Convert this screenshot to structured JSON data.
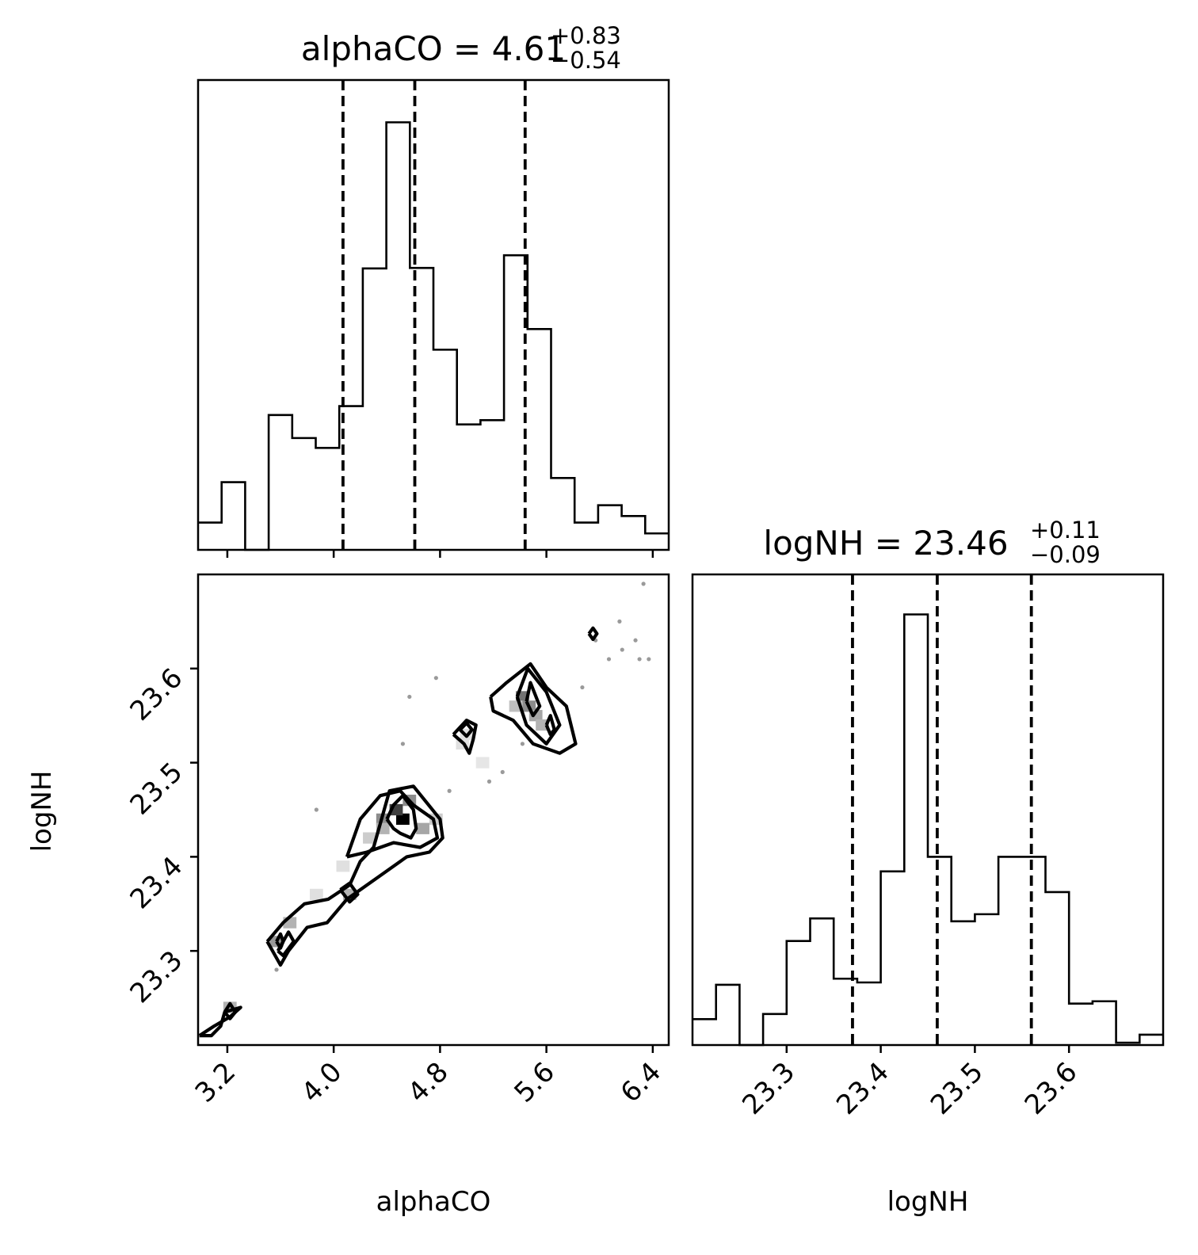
{
  "chart_data": {
    "type": "corner",
    "parameters": [
      "alphaCO",
      "logNH"
    ],
    "titles": [
      {
        "param": "alphaCO",
        "prefix": "alphaCO = ",
        "value": "4.61",
        "plus": "+0.83",
        "minus": "−0.54"
      },
      {
        "param": "logNH",
        "prefix": "logNH = ",
        "value": "23.46",
        "plus": "+0.11",
        "minus": "−0.09"
      }
    ],
    "xlabels": {
      "alphaCO": "alphaCO",
      "logNH": "logNH"
    },
    "ylabel": "logNH",
    "alphaCO_hist": {
      "range": [
        2.98,
        6.52
      ],
      "ylim": [
        0,
        1.0
      ],
      "bin_edges": [
        2.98,
        3.157,
        3.334,
        3.511,
        3.688,
        3.865,
        4.042,
        4.219,
        4.396,
        4.573,
        4.75,
        4.927,
        5.104,
        5.281,
        5.458,
        5.635,
        5.812,
        5.989,
        6.166,
        6.343,
        6.52
      ],
      "counts": [
        0.058,
        0.144,
        0.0,
        0.287,
        0.238,
        0.217,
        0.306,
        0.599,
        0.91,
        0.6,
        0.426,
        0.267,
        0.276,
        0.627,
        0.47,
        0.153,
        0.058,
        0.095,
        0.072,
        0.035
      ],
      "quantiles": [
        4.07,
        4.61,
        5.44
      ],
      "xticks": [
        "3.2",
        "4.0",
        "4.8",
        "5.6",
        "6.4"
      ]
    },
    "logNH_hist": {
      "range": [
        23.2,
        23.7
      ],
      "ylim": [
        0,
        1.0
      ],
      "bin_edges": [
        23.2,
        23.225,
        23.25,
        23.275,
        23.3,
        23.325,
        23.35,
        23.375,
        23.4,
        23.425,
        23.45,
        23.475,
        23.5,
        23.525,
        23.55,
        23.575,
        23.6,
        23.625,
        23.65,
        23.675,
        23.7
      ],
      "counts": [
        0.055,
        0.128,
        0.0,
        0.066,
        0.221,
        0.269,
        0.141,
        0.133,
        0.369,
        0.915,
        0.4,
        0.263,
        0.278,
        0.4,
        0.4,
        0.325,
        0.088,
        0.093,
        0.005,
        0.022
      ],
      "quantiles": [
        23.37,
        23.46,
        23.56
      ],
      "xticks": [
        "23.3",
        "23.4",
        "23.5",
        "23.6"
      ]
    },
    "joint": {
      "xlim": [
        2.98,
        6.52
      ],
      "ylim": [
        23.2,
        23.7
      ],
      "yticks": [
        "23.3",
        "23.4",
        "23.5",
        "23.6"
      ],
      "density_cells": [
        {
          "x": 4.52,
          "y": 23.44,
          "level": 1.0
        },
        {
          "x": 4.47,
          "y": 23.45,
          "level": 0.75
        },
        {
          "x": 4.37,
          "y": 23.44,
          "level": 0.45
        },
        {
          "x": 4.57,
          "y": 23.46,
          "level": 0.45
        },
        {
          "x": 4.67,
          "y": 23.43,
          "level": 0.35
        },
        {
          "x": 4.37,
          "y": 23.43,
          "level": 0.3
        },
        {
          "x": 4.77,
          "y": 23.44,
          "level": 0.2
        },
        {
          "x": 4.27,
          "y": 23.42,
          "level": 0.2
        },
        {
          "x": 5.42,
          "y": 23.57,
          "level": 0.55
        },
        {
          "x": 5.47,
          "y": 23.56,
          "level": 0.45
        },
        {
          "x": 5.52,
          "y": 23.55,
          "level": 0.35
        },
        {
          "x": 5.57,
          "y": 23.54,
          "level": 0.3
        },
        {
          "x": 5.37,
          "y": 23.56,
          "level": 0.25
        },
        {
          "x": 3.57,
          "y": 23.31,
          "level": 0.4
        },
        {
          "x": 3.67,
          "y": 23.33,
          "level": 0.3
        },
        {
          "x": 4.12,
          "y": 23.36,
          "level": 0.3
        },
        {
          "x": 3.22,
          "y": 23.24,
          "level": 0.3
        },
        {
          "x": 5.0,
          "y": 23.53,
          "level": 0.12
        },
        {
          "x": 4.97,
          "y": 23.52,
          "level": 0.12
        },
        {
          "x": 5.12,
          "y": 23.5,
          "level": 0.1
        },
        {
          "x": 3.87,
          "y": 23.36,
          "level": 0.12
        },
        {
          "x": 4.07,
          "y": 23.39,
          "level": 0.12
        }
      ],
      "scatter_points": [
        [
          5.97,
          23.63
        ],
        [
          6.07,
          23.61
        ],
        [
          6.17,
          23.62
        ],
        [
          6.27,
          23.63
        ],
        [
          6.3,
          23.61
        ],
        [
          6.37,
          23.61
        ],
        [
          6.15,
          23.65
        ],
        [
          6.33,
          23.69
        ],
        [
          4.57,
          23.57
        ],
        [
          4.77,
          23.59
        ],
        [
          4.52,
          23.52
        ],
        [
          3.87,
          23.45
        ],
        [
          3.57,
          23.28
        ],
        [
          5.87,
          23.58
        ],
        [
          5.17,
          23.48
        ],
        [
          5.27,
          23.49
        ],
        [
          4.87,
          23.47
        ],
        [
          5.42,
          23.52
        ]
      ],
      "contours": [
        [
          [
            2.99,
            23.21
          ],
          [
            3.1,
            23.22
          ],
          [
            3.22,
            23.23
          ],
          [
            3.3,
            23.24
          ],
          [
            3.18,
            23.235
          ],
          [
            3.15,
            23.22
          ],
          [
            3.08,
            23.21
          ],
          [
            2.99,
            23.21
          ]
        ],
        [
          [
            3.18,
            23.235
          ],
          [
            3.22,
            23.244
          ],
          [
            3.26,
            23.235
          ],
          [
            3.22,
            23.228
          ],
          [
            3.18,
            23.235
          ]
        ],
        [
          [
            3.5,
            23.31
          ],
          [
            3.62,
            23.33
          ],
          [
            3.78,
            23.35
          ],
          [
            3.96,
            23.355
          ],
          [
            4.12,
            23.37
          ],
          [
            4.2,
            23.395
          ],
          [
            4.3,
            23.41
          ],
          [
            4.42,
            23.47
          ],
          [
            4.6,
            23.475
          ],
          [
            4.8,
            23.44
          ],
          [
            4.82,
            23.42
          ],
          [
            4.72,
            23.405
          ],
          [
            4.55,
            23.4
          ],
          [
            4.35,
            23.38
          ],
          [
            4.1,
            23.355
          ],
          [
            3.95,
            23.33
          ],
          [
            3.8,
            23.325
          ],
          [
            3.66,
            23.3
          ],
          [
            3.6,
            23.285
          ],
          [
            3.5,
            23.31
          ]
        ],
        [
          [
            3.58,
            23.3
          ],
          [
            3.66,
            23.32
          ],
          [
            3.7,
            23.31
          ],
          [
            3.62,
            23.295
          ],
          [
            3.58,
            23.3
          ]
        ],
        [
          [
            3.57,
            23.31
          ],
          [
            3.6,
            23.318
          ],
          [
            3.62,
            23.31
          ],
          [
            3.6,
            23.303
          ],
          [
            3.57,
            23.31
          ]
        ],
        [
          [
            4.05,
            23.365
          ],
          [
            4.12,
            23.372
          ],
          [
            4.18,
            23.36
          ],
          [
            4.12,
            23.352
          ],
          [
            4.05,
            23.365
          ]
        ],
        [
          [
            4.1,
            23.4
          ],
          [
            4.2,
            23.44
          ],
          [
            4.35,
            23.465
          ],
          [
            4.5,
            23.47
          ],
          [
            4.6,
            23.455
          ],
          [
            4.75,
            23.44
          ],
          [
            4.78,
            23.42
          ],
          [
            4.65,
            23.41
          ],
          [
            4.45,
            23.415
          ],
          [
            4.25,
            23.405
          ],
          [
            4.1,
            23.4
          ]
        ],
        [
          [
            4.4,
            23.44
          ],
          [
            4.45,
            23.455
          ],
          [
            4.52,
            23.465
          ],
          [
            4.6,
            23.45
          ],
          [
            4.62,
            23.43
          ],
          [
            4.58,
            23.42
          ],
          [
            4.5,
            23.425
          ],
          [
            4.45,
            23.43
          ],
          [
            4.4,
            23.44
          ]
        ],
        [
          [
            4.9,
            23.53
          ],
          [
            5.0,
            23.545
          ],
          [
            5.07,
            23.54
          ],
          [
            5.05,
            23.525
          ],
          [
            5.02,
            23.51
          ],
          [
            4.98,
            23.52
          ],
          [
            4.9,
            23.53
          ]
        ],
        [
          [
            4.95,
            23.535
          ],
          [
            5.0,
            23.542
          ],
          [
            5.04,
            23.535
          ],
          [
            5.0,
            23.528
          ],
          [
            4.95,
            23.535
          ]
        ],
        [
          [
            5.18,
            23.57
          ],
          [
            5.3,
            23.585
          ],
          [
            5.48,
            23.605
          ],
          [
            5.6,
            23.58
          ],
          [
            5.75,
            23.56
          ],
          [
            5.82,
            23.52
          ],
          [
            5.7,
            23.51
          ],
          [
            5.5,
            23.52
          ],
          [
            5.35,
            23.545
          ],
          [
            5.2,
            23.555
          ],
          [
            5.18,
            23.57
          ]
        ],
        [
          [
            5.38,
            23.57
          ],
          [
            5.46,
            23.6
          ],
          [
            5.6,
            23.575
          ],
          [
            5.7,
            23.54
          ],
          [
            5.6,
            23.52
          ],
          [
            5.45,
            23.54
          ],
          [
            5.38,
            23.57
          ]
        ],
        [
          [
            5.45,
            23.565
          ],
          [
            5.48,
            23.585
          ],
          [
            5.55,
            23.56
          ],
          [
            5.5,
            23.55
          ],
          [
            5.45,
            23.565
          ]
        ],
        [
          [
            5.6,
            23.54
          ],
          [
            5.63,
            23.55
          ],
          [
            5.66,
            23.535
          ],
          [
            5.63,
            23.53
          ],
          [
            5.6,
            23.54
          ]
        ],
        [
          [
            5.92,
            23.637
          ],
          [
            5.95,
            23.643
          ],
          [
            5.98,
            23.637
          ],
          [
            5.95,
            23.631
          ],
          [
            5.92,
            23.637
          ]
        ]
      ]
    }
  }
}
